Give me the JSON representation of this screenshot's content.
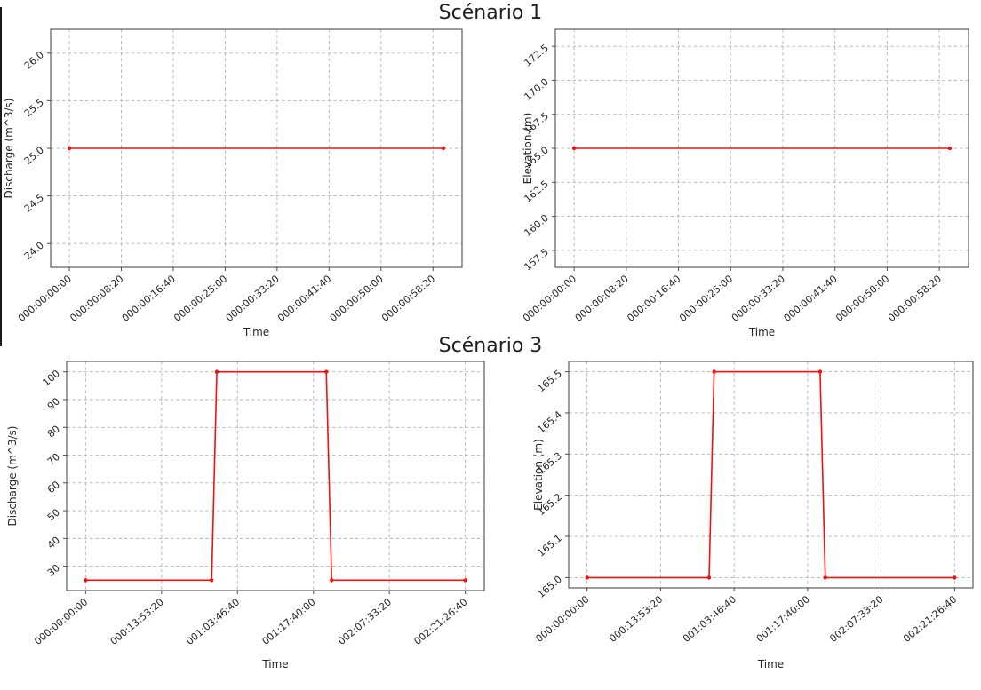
{
  "figure": {
    "scenario1_title": "Scénario 1",
    "scenario3_title": "Scénario 3"
  },
  "chart_data": [
    {
      "id": "scenario1-discharge",
      "type": "line",
      "panel_title": "Scénario 1",
      "xlabel": "Time",
      "ylabel": "Discharge (m^3/s)",
      "line_color": "#f41010",
      "grid": true,
      "legend": null,
      "xlim": [
        -180,
        3780
      ],
      "ylim": [
        23.75,
        26.25
      ],
      "x_ticks": [
        {
          "value": 0,
          "label": "000:00:00:00"
        },
        {
          "value": 500,
          "label": "000:00:08:20"
        },
        {
          "value": 1000,
          "label": "000:00:16:40"
        },
        {
          "value": 1500,
          "label": "000:00:25:00"
        },
        {
          "value": 2000,
          "label": "000:00:33:20"
        },
        {
          "value": 2500,
          "label": "000:00:41:40"
        },
        {
          "value": 3000,
          "label": "000:00:50:00"
        },
        {
          "value": 3500,
          "label": "000:00:58:20"
        }
      ],
      "y_ticks": [
        {
          "value": 24.0,
          "label": "24.0"
        },
        {
          "value": 24.5,
          "label": "24.5"
        },
        {
          "value": 25.0,
          "label": "25.0"
        },
        {
          "value": 25.5,
          "label": "25.5"
        },
        {
          "value": 26.0,
          "label": "26.0"
        }
      ],
      "series": [
        {
          "name": "Discharge",
          "x": [
            0,
            3600
          ],
          "y": [
            25.0,
            25.0
          ]
        }
      ]
    },
    {
      "id": "scenario1-elevation",
      "type": "line",
      "panel_title": "Scénario 1",
      "xlabel": "Time",
      "ylabel": "Elevation (m)",
      "line_color": "#f41010",
      "grid": true,
      "legend": null,
      "xlim": [
        -180,
        3780
      ],
      "ylim": [
        156.25,
        173.75
      ],
      "x_ticks": [
        {
          "value": 0,
          "label": "000:00:00:00"
        },
        {
          "value": 500,
          "label": "000:00:08:20"
        },
        {
          "value": 1000,
          "label": "000:00:16:40"
        },
        {
          "value": 1500,
          "label": "000:00:25:00"
        },
        {
          "value": 2000,
          "label": "000:00:33:20"
        },
        {
          "value": 2500,
          "label": "000:00:41:40"
        },
        {
          "value": 3000,
          "label": "000:00:50:00"
        },
        {
          "value": 3500,
          "label": "000:00:58:20"
        }
      ],
      "y_ticks": [
        {
          "value": 157.5,
          "label": "157.5"
        },
        {
          "value": 160.0,
          "label": "160.0"
        },
        {
          "value": 162.5,
          "label": "162.5"
        },
        {
          "value": 165.0,
          "label": "165.0"
        },
        {
          "value": 167.5,
          "label": "167.5"
        },
        {
          "value": 170.0,
          "label": "170.0"
        },
        {
          "value": 172.5,
          "label": "172.5"
        }
      ],
      "series": [
        {
          "name": "Elevation",
          "x": [
            0,
            3600
          ],
          "y": [
            165.0,
            165.0
          ]
        }
      ]
    },
    {
      "id": "scenario3-discharge",
      "type": "line",
      "panel_title": "Scénario 3",
      "xlabel": "Time",
      "ylabel": "Discharge (m^3/s)",
      "line_color": "#f41010",
      "grid": true,
      "legend": null,
      "xlim": [
        -12500,
        262500
      ],
      "ylim": [
        21.25,
        103.75
      ],
      "x_ticks": [
        {
          "value": 0,
          "label": "000:00:00:00"
        },
        {
          "value": 50000,
          "label": "000:13:53:20"
        },
        {
          "value": 100000,
          "label": "001:03:46:40"
        },
        {
          "value": 150000,
          "label": "001:17:40:00"
        },
        {
          "value": 200000,
          "label": "002:07:33:20"
        },
        {
          "value": 250000,
          "label": "002:21:26:40"
        }
      ],
      "y_ticks": [
        {
          "value": 30,
          "label": "30"
        },
        {
          "value": 40,
          "label": "40"
        },
        {
          "value": 50,
          "label": "50"
        },
        {
          "value": 60,
          "label": "60"
        },
        {
          "value": 70,
          "label": "70"
        },
        {
          "value": 80,
          "label": "80"
        },
        {
          "value": 90,
          "label": "90"
        },
        {
          "value": 100,
          "label": "100"
        }
      ],
      "series": [
        {
          "name": "Discharge",
          "x": [
            0,
            83000,
            86400,
            158500,
            162000,
            250000
          ],
          "y": [
            25,
            25,
            100,
            100,
            25,
            25
          ]
        }
      ]
    },
    {
      "id": "scenario3-elevation",
      "type": "line",
      "panel_title": "Scénario 3",
      "xlabel": "Time",
      "ylabel": "Elevation (m)",
      "line_color": "#f41010",
      "grid": true,
      "legend": null,
      "xlim": [
        -12500,
        262500
      ],
      "ylim": [
        164.975,
        165.525
      ],
      "x_ticks": [
        {
          "value": 0,
          "label": "000:00:00:00"
        },
        {
          "value": 50000,
          "label": "000:13:53:20"
        },
        {
          "value": 100000,
          "label": "001:03:46:40"
        },
        {
          "value": 150000,
          "label": "001:17:40:00"
        },
        {
          "value": 200000,
          "label": "002:07:33:20"
        },
        {
          "value": 250000,
          "label": "002:21:26:40"
        }
      ],
      "y_ticks": [
        {
          "value": 165.0,
          "label": "165.0"
        },
        {
          "value": 165.1,
          "label": "165.1"
        },
        {
          "value": 165.2,
          "label": "165.2"
        },
        {
          "value": 165.3,
          "label": "165.3"
        },
        {
          "value": 165.4,
          "label": "165.4"
        },
        {
          "value": 165.5,
          "label": "165.5"
        }
      ],
      "series": [
        {
          "name": "Elevation",
          "x": [
            0,
            83000,
            86400,
            158500,
            162000,
            250000
          ],
          "y": [
            165.0,
            165.0,
            165.5,
            165.5,
            165.0,
            165.0
          ]
        }
      ]
    }
  ]
}
